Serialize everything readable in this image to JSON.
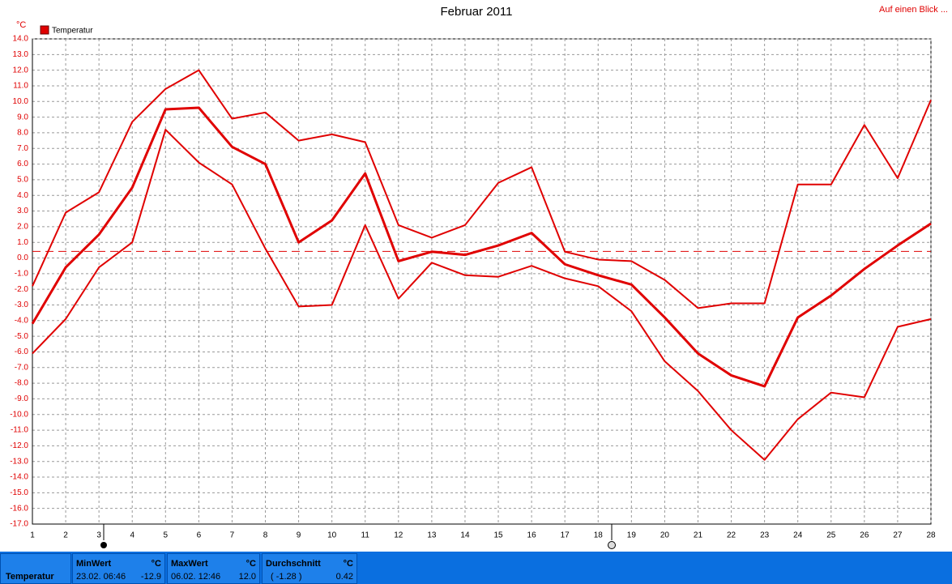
{
  "chart_data": {
    "type": "line",
    "title": "Februar 2011",
    "y_unit": "°C",
    "link": "Auf einen Blick ...",
    "x": [
      1,
      2,
      3,
      4,
      5,
      6,
      7,
      8,
      9,
      10,
      11,
      12,
      13,
      14,
      15,
      16,
      17,
      18,
      19,
      20,
      21,
      22,
      23,
      24,
      25,
      26,
      27,
      28
    ],
    "xlim": [
      1,
      28
    ],
    "xticks": [
      1,
      2,
      3,
      4,
      5,
      6,
      7,
      8,
      9,
      10,
      11,
      12,
      13,
      14,
      15,
      16,
      17,
      18,
      19,
      20,
      21,
      22,
      23,
      24,
      25,
      26,
      27,
      28
    ],
    "ylim": [
      -17,
      14
    ],
    "yticks": [
      {
        "value": 14,
        "label": "14.0"
      },
      {
        "value": 13,
        "label": "13.0"
      },
      {
        "value": 12,
        "label": "12.0"
      },
      {
        "value": 11,
        "label": "11.0"
      },
      {
        "value": 10,
        "label": "10.0"
      },
      {
        "value": 9,
        "label": "9.0"
      },
      {
        "value": 8,
        "label": "8.0"
      },
      {
        "value": 7,
        "label": "7.0"
      },
      {
        "value": 6,
        "label": "6.0"
      },
      {
        "value": 5,
        "label": "5.0"
      },
      {
        "value": 4,
        "label": "4.0"
      },
      {
        "value": 3,
        "label": "3.0"
      },
      {
        "value": 2,
        "label": "2.0"
      },
      {
        "value": 1,
        "label": "1.0"
      },
      {
        "value": 0,
        "label": "0.0"
      },
      {
        "value": -1,
        "label": "-1.0"
      },
      {
        "value": -2,
        "label": "-2.0"
      },
      {
        "value": -3,
        "label": "-3.0"
      },
      {
        "value": -4,
        "label": "-4.0"
      },
      {
        "value": -5,
        "label": "-5.0"
      },
      {
        "value": -6,
        "label": "-6.0"
      },
      {
        "value": -7,
        "label": "-7.0"
      },
      {
        "value": -8,
        "label": "-8.0"
      },
      {
        "value": -9,
        "label": "-9.0"
      },
      {
        "value": -10,
        "label": "-10.0"
      },
      {
        "value": -11,
        "label": "-11.0"
      },
      {
        "value": -12,
        "label": "-12.0"
      },
      {
        "value": -13,
        "label": "-13.0"
      },
      {
        "value": -14,
        "label": "-14.0"
      },
      {
        "value": -15,
        "label": "-15.0"
      },
      {
        "value": -16,
        "label": "-16.0"
      },
      {
        "value": -17,
        "label": "-17.0"
      }
    ],
    "grid": true,
    "average_line": 0.42,
    "series": [
      {
        "color": "#e00000",
        "width": 2,
        "values": [
          -1.8,
          2.9,
          4.2,
          8.7,
          10.8,
          12.0,
          8.9,
          9.3,
          7.5,
          7.9,
          7.4,
          2.1,
          1.3,
          2.1,
          4.8,
          5.8,
          0.4,
          -0.1,
          -0.2,
          -1.4,
          -3.2,
          -2.9,
          -2.9,
          4.7,
          4.7,
          8.5,
          5.1,
          10.1
        ]
      },
      {
        "name": "Temperatur",
        "color": "#e00000",
        "width": 3,
        "values": [
          -4.2,
          -0.6,
          1.5,
          4.5,
          9.5,
          9.6,
          7.1,
          6.0,
          1.0,
          2.4,
          5.4,
          -0.2,
          0.4,
          0.2,
          0.8,
          1.6,
          -0.4,
          -1.1,
          -1.7,
          -3.8,
          -6.1,
          -7.5,
          -8.2,
          -3.8,
          -2.4,
          -0.7,
          0.8,
          2.2
        ]
      },
      {
        "color": "#e00000",
        "width": 2,
        "values": [
          -6.1,
          -3.9,
          -0.6,
          1.0,
          8.2,
          6.1,
          4.7,
          0.6,
          -3.1,
          -3.0,
          2.1,
          -2.6,
          -0.3,
          -1.1,
          -1.2,
          -0.5,
          -1.3,
          -1.8,
          -3.4,
          -6.6,
          -8.5,
          -11.0,
          -12.9,
          -10.3,
          -8.6,
          -8.9,
          -4.4,
          -3.9
        ]
      }
    ]
  },
  "footer": {
    "label": "Temperatur",
    "min": {
      "title": "MinWert",
      "unit": "°C",
      "when": "23.02.  06:46",
      "value": "-12.9"
    },
    "max": {
      "title": "MaxWert",
      "unit": "°C",
      "when": "06.02.  12:46",
      "value": "12.0"
    },
    "avg": {
      "title": "Durchschnitt",
      "unit": "°C",
      "when": "( -1.28 )",
      "value": "0.42"
    }
  }
}
